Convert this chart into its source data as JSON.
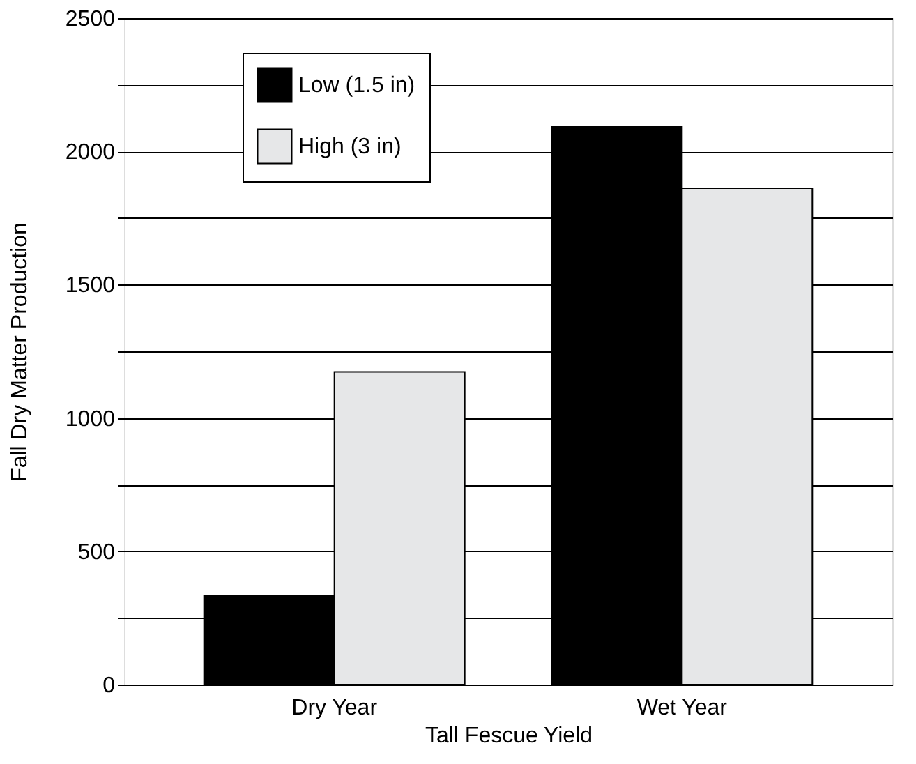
{
  "chart_data": {
    "type": "bar",
    "xlabel": "Tall Fescue Yield",
    "ylabel": "Fall Dry Matter Production",
    "categories": [
      "Dry Year",
      "Wet Year"
    ],
    "series": [
      {
        "name": "Low (1.5 in)",
        "color": "#000000",
        "values": [
          333,
          2092
        ]
      },
      {
        "name": "High (3 in)",
        "color": "#e6e7e8",
        "values": [
          1173,
          1862
        ]
      }
    ],
    "ylim": [
      0,
      2500
    ],
    "yticks": [
      0,
      {
        "value": 250,
        "label": null
      },
      500,
      {
        "value": 750,
        "label": null
      },
      1000,
      {
        "value": 1250,
        "label": null
      },
      1500,
      {
        "value": 1750,
        "label": null
      },
      2000,
      {
        "value": 2250,
        "label": null
      },
      2500
    ],
    "grid": "y",
    "legend": "top left"
  }
}
